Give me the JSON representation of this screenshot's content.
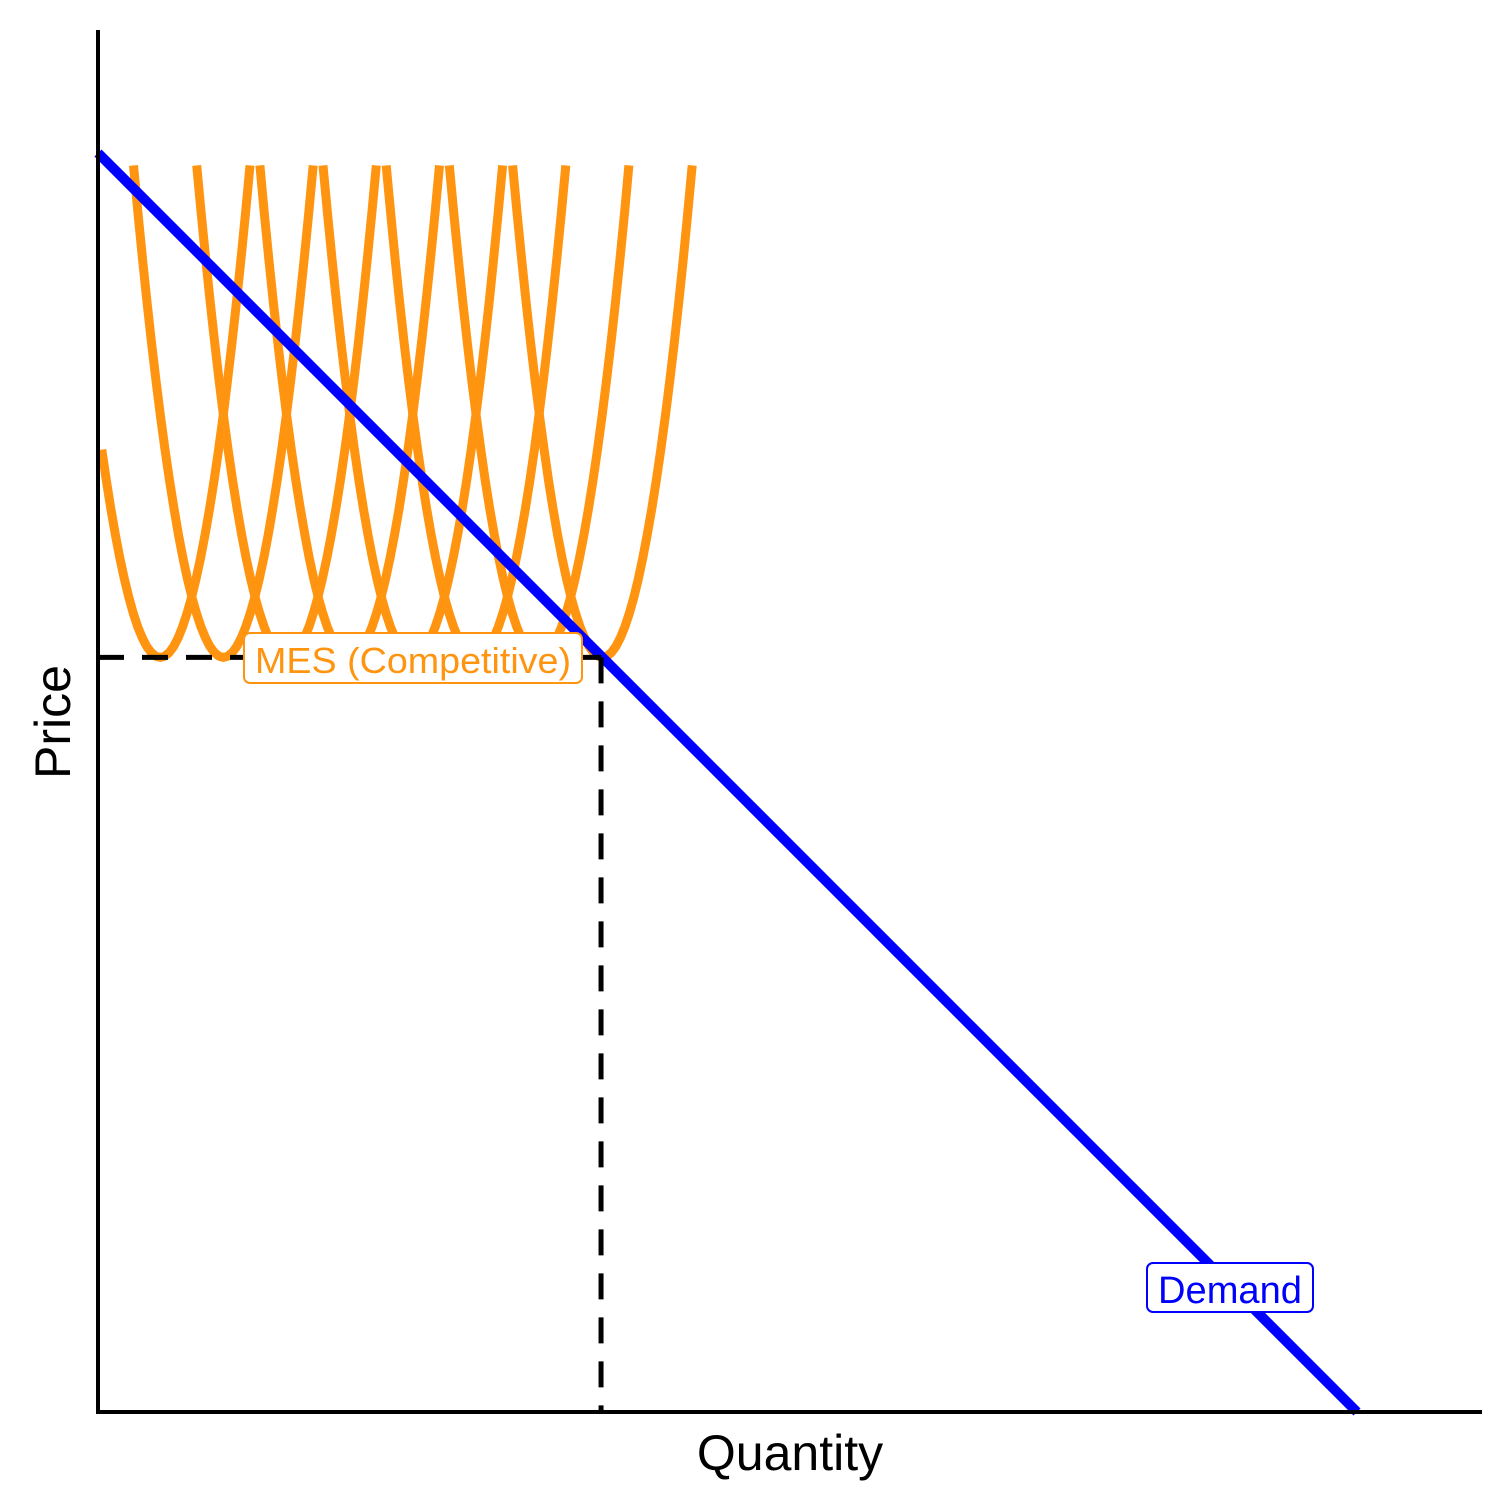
{
  "chart_data": {
    "type": "line",
    "title": "",
    "xlabel": "Quantity",
    "ylabel": "Price",
    "xlim": [
      0,
      100
    ],
    "ylim": [
      0,
      100
    ],
    "grid": false,
    "ticks": "none",
    "demand": {
      "name": "Demand",
      "color": "#0000ff",
      "points": [
        [
          0,
          91.1
        ],
        [
          91.1,
          0
        ]
      ]
    },
    "average_cost_curves": {
      "name": "MES (Competitive)",
      "color": "#ff9410",
      "min_price": 54.6,
      "curvature": 0.843,
      "max_price": 90.2,
      "minima_quantities": [
        4.5,
        9.07,
        13.64,
        18.21,
        22.78,
        27.35,
        31.92,
        36.5
      ]
    },
    "mes_point": {
      "quantity": 36.4,
      "price": 54.6
    },
    "annotations": [
      {
        "text": "MES (Competitive)",
        "color": "#ff9410",
        "at": [
          22.5,
          54.6
        ]
      },
      {
        "text": "Demand",
        "color": "#0000ff",
        "at": [
          81.2,
          8.9
        ]
      }
    ]
  }
}
